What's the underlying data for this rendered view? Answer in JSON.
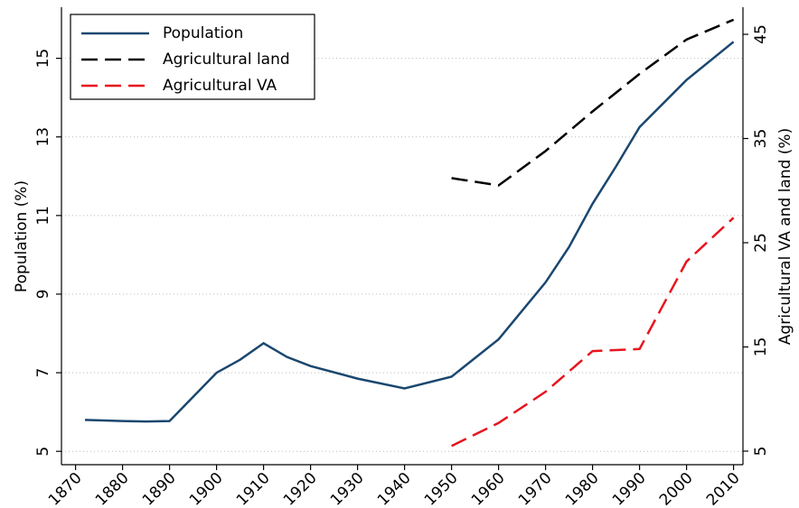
{
  "chart_data": {
    "type": "line",
    "y_label": "Population (%)",
    "y2_label": "Agricultural VA and land (%)",
    "xlim": [
      1867,
      2012
    ],
    "xticks": [
      1870,
      1880,
      1890,
      1900,
      1910,
      1920,
      1930,
      1940,
      1950,
      1960,
      1970,
      1980,
      1990,
      2000,
      2010
    ],
    "ylim": [
      4.66,
      16.3
    ],
    "yticks": [
      5,
      7,
      9,
      11,
      13,
      15
    ],
    "y2lim": [
      3.7,
      47.6
    ],
    "y2ticks": [
      5,
      15,
      25,
      35,
      45
    ],
    "grid": true,
    "legend": "top-left",
    "series": [
      {
        "name": "Population",
        "color": "#1a476f",
        "dash": false,
        "x": [
          1872,
          1880,
          1885,
          1890,
          1900,
          1905,
          1910,
          1915,
          1920,
          1930,
          1940,
          1950,
          1960,
          1970,
          1975,
          1980,
          1985,
          1990,
          2000,
          2010
        ],
        "values": [
          5.8,
          5.77,
          5.76,
          5.77,
          7.0,
          7.33,
          7.75,
          7.4,
          7.17,
          6.85,
          6.6,
          6.9,
          7.85,
          9.3,
          10.2,
          11.3,
          12.25,
          13.25,
          14.45,
          15.42
        ]
      },
      {
        "name": "Agricultural land",
        "color": "#000000",
        "dash": true,
        "axis": "y2",
        "x": [
          1950,
          1960,
          1970,
          1980,
          1990,
          2000,
          2010
        ],
        "values": [
          31.2,
          30.5,
          33.8,
          37.6,
          41.2,
          44.5,
          46.4
        ]
      },
      {
        "name": "Agricultural VA",
        "color": "#e8141e",
        "dash": true,
        "axis": "y2",
        "x": [
          1950,
          1960,
          1970,
          1980,
          1990,
          2000,
          2010
        ],
        "values": [
          5.5,
          7.7,
          10.7,
          14.6,
          14.8,
          23.2,
          27.4
        ]
      }
    ]
  }
}
